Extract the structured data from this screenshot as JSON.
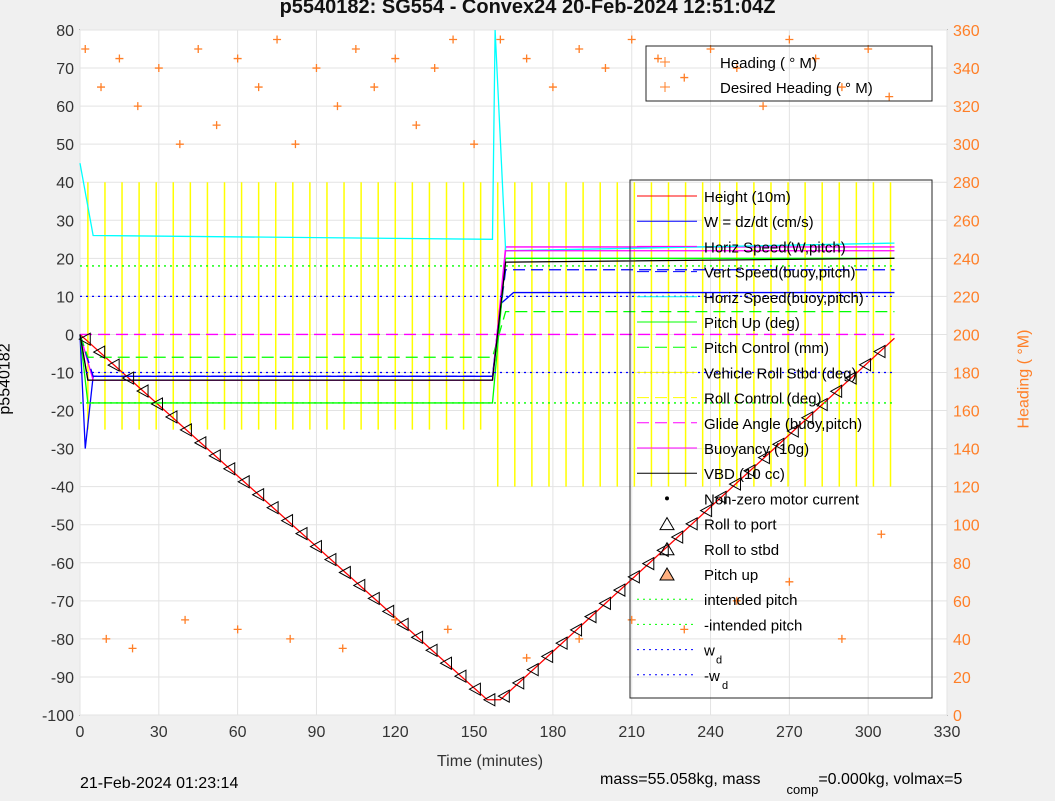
{
  "chart_data": {
    "type": "line",
    "title": "p5540182: SG554 - Convex24 20-Feb-2024 12:51:04Z",
    "xlabel": "Time (minutes)",
    "ylabel": "p5540182",
    "y2label": "Heading ( °M)",
    "xlim": [
      0,
      330
    ],
    "ylim": [
      -100,
      80
    ],
    "y2lim": [
      0,
      360
    ],
    "xticks": [
      0,
      30,
      60,
      90,
      120,
      150,
      180,
      210,
      240,
      270,
      300,
      330
    ],
    "yticks": [
      -100,
      -90,
      -80,
      -70,
      -60,
      -50,
      -40,
      -30,
      -20,
      -10,
      0,
      10,
      20,
      30,
      40,
      50,
      60,
      70,
      80
    ],
    "y2ticks": [
      0,
      20,
      40,
      60,
      80,
      100,
      120,
      140,
      160,
      180,
      200,
      220,
      240,
      260,
      280,
      300,
      320,
      340,
      360
    ],
    "grid": true,
    "series": [
      {
        "name": "Height (10m)",
        "color": "#ff0000",
        "style": "solid",
        "x": [
          0,
          155,
          160,
          310
        ],
        "y": [
          0,
          -96,
          -96,
          -1
        ]
      },
      {
        "name": "W = dz/dt (cm/s)",
        "color": "#0000ff",
        "style": "solid",
        "x": [
          0,
          2,
          5,
          157,
          160,
          165,
          310
        ],
        "y": [
          0,
          -30,
          -11,
          -11,
          8,
          11,
          11
        ]
      },
      {
        "name": "Horiz Speed(W,pitch)",
        "color": "#ff00ff",
        "style": "solid",
        "x": [
          0,
          5,
          157,
          162,
          310
        ],
        "y": [
          0,
          -12,
          -12,
          23,
          23
        ]
      },
      {
        "name": "Vert Speed(buoy,pitch)",
        "color": "#0000ff",
        "style": "dashed",
        "x": [
          0,
          5,
          157,
          162,
          310
        ],
        "y": [
          0,
          -11,
          -11,
          17,
          17
        ]
      },
      {
        "name": "Horiz Speed(buoy,pitch)",
        "color": "#00ffff",
        "style": "solid",
        "x": [
          0,
          5,
          157,
          158,
          162,
          310
        ],
        "y": [
          45,
          26,
          25,
          80,
          22,
          24
        ]
      },
      {
        "name": "Pitch Up (deg)",
        "color": "#00ff00",
        "style": "solid",
        "x": [
          0,
          3,
          157,
          162,
          310
        ],
        "y": [
          0,
          -18,
          -18,
          20,
          20
        ]
      },
      {
        "name": "Pitch Control (mm)",
        "color": "#00ff00",
        "style": "dashed",
        "x": [
          0,
          3,
          157,
          162,
          310
        ],
        "y": [
          0,
          -6,
          -6,
          6,
          6
        ]
      },
      {
        "name": "Vehicle Roll Stbd (deg)",
        "color": "#ffff00",
        "style": "solid",
        "x": [],
        "y": []
      },
      {
        "name": "Roll Control (deg)",
        "color": "#ffff00",
        "style": "dashed",
        "x": [],
        "y": []
      },
      {
        "name": "Glide Angle (buoy,pitch)",
        "color": "#ff00ff",
        "style": "dashed",
        "x": [
          0,
          310
        ],
        "y": [
          0,
          0
        ]
      },
      {
        "name": "Buoyancy (10g)",
        "color": "#ff00ff",
        "style": "solid",
        "x": [
          0,
          3,
          157,
          162,
          310
        ],
        "y": [
          0,
          -12,
          -12,
          22,
          22
        ]
      },
      {
        "name": "VBD (10 cc)",
        "color": "#000000",
        "style": "solid",
        "x": [
          0,
          3,
          157,
          162,
          310
        ],
        "y": [
          0,
          -12,
          -12,
          19,
          20
        ]
      },
      {
        "name": "Non-zero motor current",
        "color": "#000000",
        "style": "dot",
        "x": [],
        "y": []
      },
      {
        "name": "Roll to port",
        "color": "#000000",
        "style": "tri-left",
        "x": [],
        "y": []
      },
      {
        "name": "Roll to stbd",
        "color": "#000000",
        "style": "tri-right",
        "x": [],
        "y": []
      },
      {
        "name": "Pitch up",
        "color": "#ff8000",
        "style": "tri-up",
        "x": [],
        "y": []
      },
      {
        "name": "intended pitch",
        "color": "#00ff00",
        "style": "dotted",
        "x": [
          0,
          310
        ],
        "y": [
          18,
          18
        ]
      },
      {
        "name": "-intended pitch",
        "color": "#00ff00",
        "style": "dotted",
        "x": [
          0,
          310
        ],
        "y": [
          -18,
          -18
        ]
      },
      {
        "name": "w_d",
        "color": "#0000ff",
        "style": "dotted",
        "x": [
          0,
          310
        ],
        "y": [
          10,
          10
        ]
      },
      {
        "name": "-w_d",
        "color": "#0000ff",
        "style": "dotted",
        "x": [
          0,
          310
        ],
        "y": [
          -10,
          -10
        ]
      }
    ],
    "legend_labels": [
      "Height (10m)",
      "W = dz/dt (cm/s)",
      "Horiz Speed(W,pitch)",
      "Vert Speed(buoy,pitch)",
      "Horiz Speed(buoy,pitch)",
      "Pitch Up (deg)",
      "Pitch Control (mm)",
      "Vehicle Roll Stbd (deg)",
      "Roll Control (deg)",
      "Glide Angle (buoy,pitch)",
      "Buoyancy (10g)",
      "VBD (10 cc)",
      "Non-zero motor current",
      "Roll to port",
      "Roll to stbd",
      "Pitch up",
      "intended pitch",
      "-intended pitch",
      "w",
      "-w"
    ],
    "legend_subscripts": {
      "18": "d",
      "19": "d"
    },
    "heading_series": {
      "name": "Heading ( °M)",
      "color": "#ff7f27",
      "x": [
        2,
        8,
        15,
        22,
        30,
        38,
        45,
        52,
        60,
        68,
        75,
        82,
        90,
        98,
        105,
        112,
        120,
        128,
        135,
        142,
        150,
        160,
        170,
        180,
        190,
        200,
        210,
        220,
        230,
        240,
        250,
        260,
        270,
        280,
        290,
        300,
        308,
        10,
        20,
        40,
        60,
        80,
        100,
        120,
        140,
        170,
        190,
        210,
        230,
        250,
        270,
        290,
        305
      ],
      "y": [
        350,
        330,
        345,
        320,
        340,
        300,
        350,
        310,
        345,
        330,
        355,
        300,
        340,
        320,
        350,
        330,
        345,
        310,
        340,
        355,
        300,
        355,
        345,
        330,
        350,
        340,
        355,
        345,
        335,
        350,
        340,
        320,
        355,
        345,
        330,
        350,
        325,
        40,
        35,
        50,
        45,
        40,
        35,
        50,
        45,
        30,
        40,
        50,
        45,
        60,
        70,
        40,
        95
      ]
    },
    "legend2_labels": [
      "Heading ( ° M)",
      "Desired Heading ( ° M)"
    ]
  },
  "footer": {
    "timestamp": "21-Feb-2024 01:23:14",
    "mass_text": "mass=55.058kg, mass",
    "comp_sub": "comp",
    "rest": "=0.000kg, volmax=5"
  }
}
